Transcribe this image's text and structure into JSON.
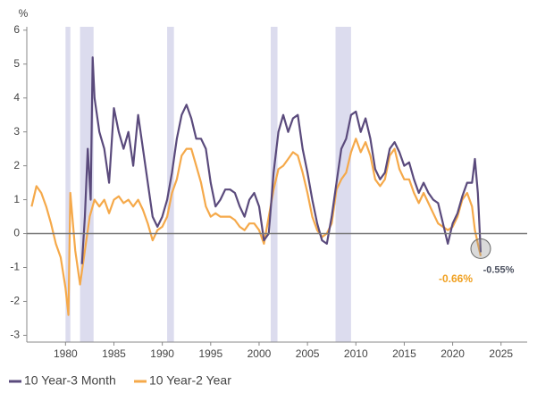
{
  "chart_data": {
    "type": "line",
    "y_unit": "%",
    "xlim": [
      1976,
      2027.7
    ],
    "ylim": [
      -3.2,
      6.1
    ],
    "xticks": [
      1980,
      1985,
      1990,
      1995,
      2000,
      2005,
      2010,
      2015,
      2020,
      2025
    ],
    "yticks": [
      -3,
      -2,
      -1,
      0,
      1,
      2,
      3,
      4,
      5,
      6
    ],
    "zero_line": true,
    "shaded_periods": [
      [
        1980.0,
        1980.5
      ],
      [
        1981.5,
        1982.9
      ],
      [
        1990.5,
        1991.2
      ],
      [
        2001.2,
        2001.9
      ],
      [
        2007.9,
        2009.5
      ]
    ],
    "shade_color": "#dcdcee",
    "series": [
      {
        "name": "10 Year-3 Month",
        "color": "#5a4a7c",
        "last_label": "-0.55%",
        "x": [
          1981.7,
          1982,
          1982.3,
          1982.6,
          1982.8,
          1983,
          1983.5,
          1984,
          1984.5,
          1985,
          1985.5,
          1986,
          1986.5,
          1987,
          1987.5,
          1988,
          1988.5,
          1989,
          1989.5,
          1990,
          1990.5,
          1991,
          1991.5,
          1992,
          1992.5,
          1993,
          1993.5,
          1994,
          1994.5,
          1995,
          1995.5,
          1996,
          1996.5,
          1997,
          1997.5,
          1998,
          1998.5,
          1999,
          1999.5,
          2000,
          2000.5,
          2001,
          2001.5,
          2002,
          2002.5,
          2003,
          2003.5,
          2004,
          2004.5,
          2005,
          2005.5,
          2006,
          2006.5,
          2007,
          2007.5,
          2008,
          2008.5,
          2009,
          2009.5,
          2010,
          2010.5,
          2011,
          2011.5,
          2012,
          2012.5,
          2013,
          2013.5,
          2014,
          2014.5,
          2015,
          2015.5,
          2016,
          2016.5,
          2017,
          2017.5,
          2018,
          2018.5,
          2019,
          2019.5,
          2020,
          2020.5,
          2021,
          2021.5,
          2022,
          2022.3,
          2022.6,
          2022.9
        ],
        "values": [
          -0.9,
          0.5,
          2.5,
          1.0,
          5.2,
          4.0,
          3.0,
          2.5,
          1.5,
          3.7,
          3.0,
          2.5,
          3.0,
          2.0,
          3.5,
          2.5,
          1.5,
          0.5,
          0.2,
          0.5,
          1.0,
          1.8,
          2.8,
          3.5,
          3.8,
          3.4,
          2.8,
          2.8,
          2.5,
          1.5,
          0.8,
          1.0,
          1.3,
          1.3,
          1.2,
          0.8,
          0.5,
          1.0,
          1.2,
          0.8,
          -0.2,
          0.0,
          1.8,
          3.0,
          3.5,
          3.0,
          3.4,
          3.5,
          2.5,
          1.8,
          1.0,
          0.3,
          -0.2,
          -0.3,
          0.5,
          1.5,
          2.5,
          2.8,
          3.5,
          3.6,
          3.0,
          3.4,
          2.8,
          1.9,
          1.6,
          1.8,
          2.5,
          2.7,
          2.4,
          2.0,
          2.1,
          1.6,
          1.2,
          1.5,
          1.2,
          1.0,
          0.9,
          0.3,
          -0.3,
          0.3,
          0.6,
          1.1,
          1.5,
          1.5,
          2.2,
          1.2,
          -0.55
        ]
      },
      {
        "name": "10 Year-2 Year",
        "color": "#f5a94a",
        "last_label": "-0.66%",
        "x": [
          1976.5,
          1977,
          1977.5,
          1978,
          1978.5,
          1979,
          1979.5,
          1980,
          1980.3,
          1980.5,
          1981,
          1981.5,
          1982,
          1982.5,
          1983,
          1983.5,
          1984,
          1984.5,
          1985,
          1985.5,
          1986,
          1986.5,
          1987,
          1987.5,
          1988,
          1988.5,
          1989,
          1989.5,
          1990,
          1990.5,
          1991,
          1991.5,
          1992,
          1992.5,
          1993,
          1993.5,
          1994,
          1994.5,
          1995,
          1995.5,
          1996,
          1996.5,
          1997,
          1997.5,
          1998,
          1998.5,
          1999,
          1999.5,
          2000,
          2000.5,
          2001,
          2001.5,
          2002,
          2002.5,
          2003,
          2003.5,
          2004,
          2004.5,
          2005,
          2005.5,
          2006,
          2006.5,
          2007,
          2007.5,
          2008,
          2008.5,
          2009,
          2009.5,
          2010,
          2010.5,
          2011,
          2011.5,
          2012,
          2012.5,
          2013,
          2013.5,
          2014,
          2014.5,
          2015,
          2015.5,
          2016,
          2016.5,
          2017,
          2017.5,
          2018,
          2018.5,
          2019,
          2019.5,
          2020,
          2020.5,
          2021,
          2021.5,
          2022,
          2022.3,
          2022.6,
          2022.9
        ],
        "values": [
          0.8,
          1.4,
          1.2,
          0.8,
          0.3,
          -0.3,
          -0.7,
          -1.6,
          -2.4,
          1.2,
          -0.5,
          -1.5,
          -0.5,
          0.5,
          1.0,
          0.8,
          1.0,
          0.6,
          1.0,
          1.1,
          0.9,
          1.0,
          0.8,
          1.0,
          0.7,
          0.3,
          -0.2,
          0.1,
          0.2,
          0.5,
          1.2,
          1.6,
          2.3,
          2.5,
          2.5,
          2.0,
          1.5,
          0.8,
          0.5,
          0.6,
          0.5,
          0.5,
          0.5,
          0.4,
          0.2,
          0.1,
          0.3,
          0.3,
          0.1,
          -0.3,
          0.5,
          1.3,
          1.9,
          2.0,
          2.2,
          2.4,
          2.3,
          1.8,
          1.2,
          0.5,
          0.1,
          -0.1,
          0.0,
          0.3,
          1.3,
          1.6,
          1.8,
          2.4,
          2.8,
          2.4,
          2.7,
          2.3,
          1.6,
          1.4,
          1.6,
          2.3,
          2.5,
          1.9,
          1.6,
          1.6,
          1.2,
          0.9,
          1.2,
          0.9,
          0.6,
          0.3,
          0.2,
          0.1,
          0.2,
          0.5,
          1.0,
          1.2,
          0.8,
          0.1,
          -0.3,
          -0.66
        ]
      }
    ]
  }
}
